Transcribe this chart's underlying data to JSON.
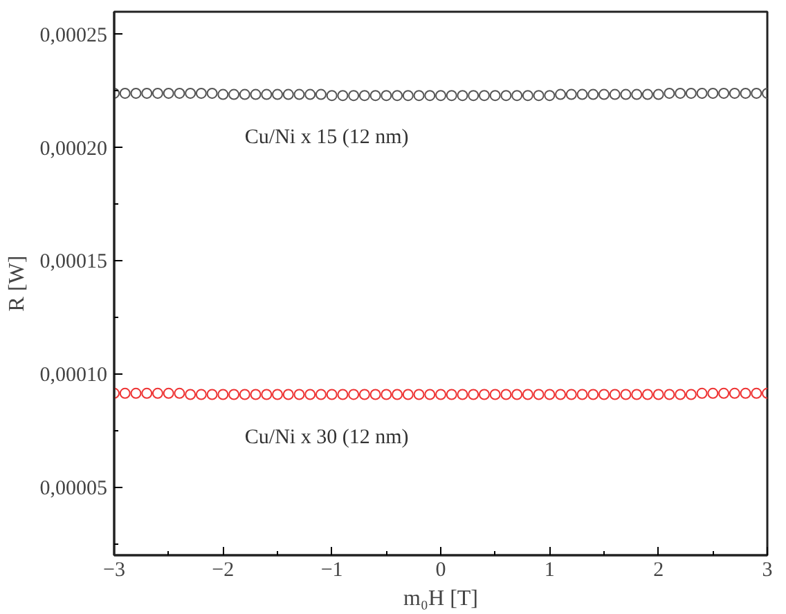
{
  "chart_data": {
    "type": "scatter",
    "xlabel": "m₀H [T]",
    "ylabel": "R [W]",
    "marker": "circle",
    "grid": false,
    "x": [
      -3,
      -2.9,
      -2.8,
      -2.7,
      -2.6,
      -2.5,
      -2.4,
      -2.3,
      -2.2,
      -2.1,
      -2,
      -1.9,
      -1.8,
      -1.7,
      -1.6,
      -1.5,
      -1.4,
      -1.3,
      -1.2,
      -1.1,
      -1,
      -0.9,
      -0.8,
      -0.7,
      -0.6,
      -0.5,
      -0.4,
      -0.3,
      -0.2,
      -0.1,
      0,
      0.1,
      0.2,
      0.3,
      0.4,
      0.5,
      0.6,
      0.7,
      0.8,
      0.9,
      1,
      1.1,
      1.2,
      1.3,
      1.4,
      1.5,
      1.6,
      1.7,
      1.8,
      1.9,
      2,
      2.1,
      2.2,
      2.3,
      2.4,
      2.5,
      2.6,
      2.7,
      2.8,
      2.9,
      3
    ],
    "series": [
      {
        "name": "Cu/Ni x 15 (12 nm)",
        "color": "#555555",
        "values": [
          0.000224,
          0.000224,
          0.000224,
          0.000224,
          0.000224,
          0.000224,
          0.000224,
          0.000224,
          0.000224,
          0.000224,
          0.0002235,
          0.0002235,
          0.0002235,
          0.0002235,
          0.0002235,
          0.0002235,
          0.0002235,
          0.0002235,
          0.0002235,
          0.0002235,
          0.000223,
          0.000223,
          0.000223,
          0.000223,
          0.000223,
          0.000223,
          0.000223,
          0.000223,
          0.000223,
          0.000223,
          0.000223,
          0.000223,
          0.000223,
          0.000223,
          0.000223,
          0.000223,
          0.000223,
          0.000223,
          0.000223,
          0.000223,
          0.000223,
          0.0002235,
          0.0002235,
          0.0002235,
          0.0002235,
          0.0002235,
          0.0002235,
          0.0002235,
          0.0002235,
          0.0002235,
          0.0002235,
          0.000224,
          0.000224,
          0.000224,
          0.000224,
          0.000224,
          0.000224,
          0.000224,
          0.000224,
          0.000224,
          0.000224
        ]
      },
      {
        "name": "Cu/Ni x 30 (12 nm)",
        "color": "#ee3333",
        "values": [
          9.15e-05,
          9.15e-05,
          9.15e-05,
          9.15e-05,
          9.15e-05,
          9.15e-05,
          9.15e-05,
          9.1e-05,
          9.1e-05,
          9.1e-05,
          9.1e-05,
          9.1e-05,
          9.1e-05,
          9.1e-05,
          9.1e-05,
          9.1e-05,
          9.1e-05,
          9.1e-05,
          9.1e-05,
          9.1e-05,
          9.1e-05,
          9.1e-05,
          9.1e-05,
          9.1e-05,
          9.1e-05,
          9.1e-05,
          9.1e-05,
          9.1e-05,
          9.1e-05,
          9.1e-05,
          9.1e-05,
          9.1e-05,
          9.1e-05,
          9.1e-05,
          9.1e-05,
          9.1e-05,
          9.1e-05,
          9.1e-05,
          9.1e-05,
          9.1e-05,
          9.1e-05,
          9.1e-05,
          9.1e-05,
          9.1e-05,
          9.1e-05,
          9.1e-05,
          9.1e-05,
          9.1e-05,
          9.1e-05,
          9.1e-05,
          9.1e-05,
          9.1e-05,
          9.1e-05,
          9.1e-05,
          9.15e-05,
          9.15e-05,
          9.15e-05,
          9.15e-05,
          9.15e-05,
          9.15e-05,
          9.15e-05
        ]
      }
    ],
    "xlim": [
      -3,
      3
    ],
    "ylim": [
      2e-05,
      0.00026
    ],
    "xticks": [
      {
        "value": -3,
        "label": "−3"
      },
      {
        "value": -2.5,
        "label": null
      },
      {
        "value": -2,
        "label": "−2"
      },
      {
        "value": -1.5,
        "label": null
      },
      {
        "value": -1,
        "label": "−1"
      },
      {
        "value": -0.5,
        "label": null
      },
      0,
      {
        "value": 0.5,
        "label": null
      },
      1,
      {
        "value": 1.5,
        "label": null
      },
      2,
      {
        "value": 2.5,
        "label": null
      },
      3
    ],
    "yticks": [
      {
        "value": 2.5e-05,
        "label": null
      },
      {
        "value": 5e-05,
        "label": "0,00005"
      },
      {
        "value": 7.5e-05,
        "label": null
      },
      {
        "value": 0.0001,
        "label": "0,00010"
      },
      {
        "value": 0.000125,
        "label": null
      },
      {
        "value": 0.00015,
        "label": "0,00015"
      },
      {
        "value": 0.000175,
        "label": null
      },
      {
        "value": 0.0002,
        "label": "0,00020"
      },
      {
        "value": 0.000225,
        "label": null
      },
      {
        "value": 0.00025,
        "label": "0,00025"
      }
    ]
  }
}
